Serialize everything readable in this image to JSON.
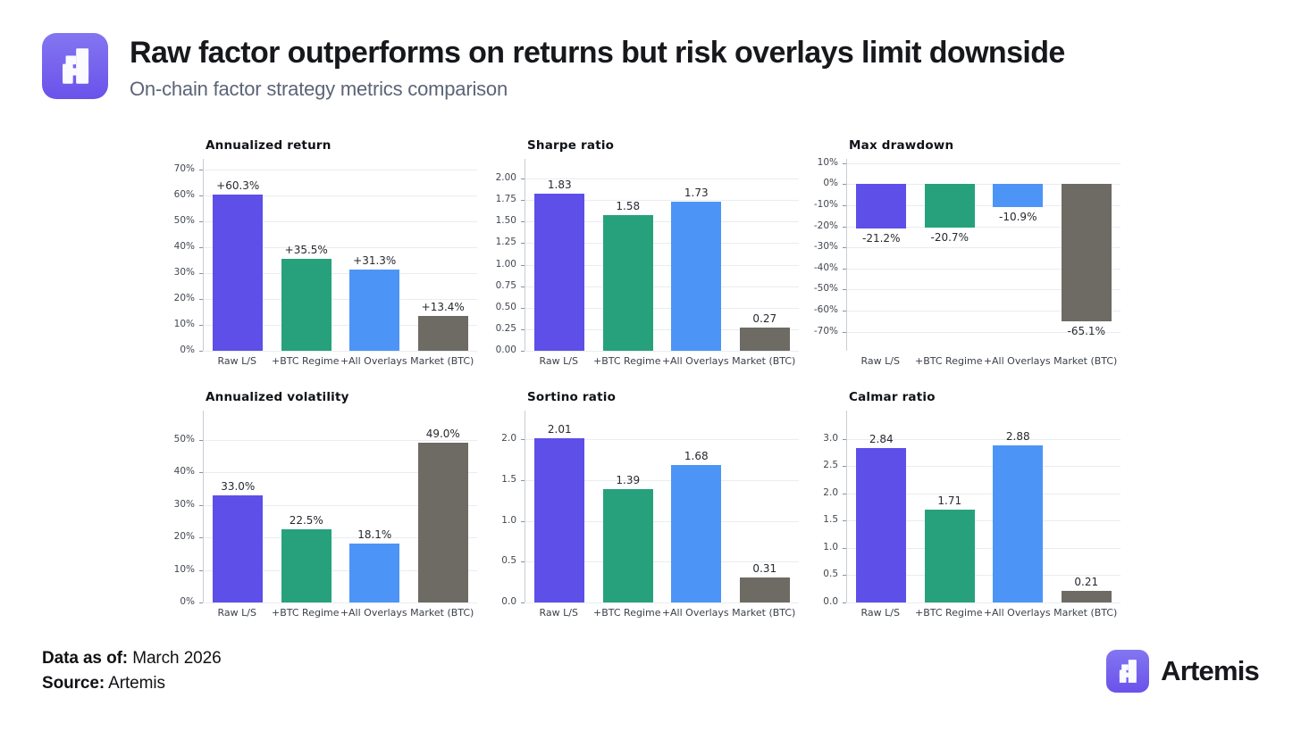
{
  "header": {
    "title": "Raw factor outperforms on returns but risk overlays limit downside",
    "subtitle": "On-chain factor strategy metrics comparison"
  },
  "footer": {
    "data_as_of_label": "Data as of:",
    "data_as_of_value": " March 2026",
    "source_label": "Source:",
    "source_value": " Artemis",
    "brand": "Artemis"
  },
  "colors": {
    "bar_colors": [
      "#5D4FE8",
      "#27A17C",
      "#4D94F7",
      "#6E6B64"
    ],
    "logo_purple_top": "#8376F1",
    "logo_purple_bottom": "#6A52EA",
    "title_text": "#16181C",
    "subtitle_text": "#5B6477",
    "gridline": "#e9ecf1"
  },
  "chart_data": [
    {
      "id": "annualized-return",
      "type": "bar",
      "title": "Annualized return",
      "categories": [
        "Raw L/S",
        "+BTC Regime",
        "+All Overlays",
        "Market (BTC)"
      ],
      "values": [
        60.3,
        35.5,
        31.3,
        13.4
      ],
      "labels": [
        "+60.3%",
        "+35.5%",
        "+31.3%",
        "+13.4%"
      ],
      "ylim": [
        0,
        74
      ],
      "ticks": [
        [
          70,
          "70%"
        ],
        [
          60,
          "60%"
        ],
        [
          50,
          "50%"
        ],
        [
          40,
          "40%"
        ],
        [
          30,
          "30%"
        ],
        [
          20,
          "20%"
        ],
        [
          10,
          "10%"
        ],
        [
          0,
          "0%"
        ]
      ],
      "grid": true,
      "legend": "none"
    },
    {
      "id": "sharpe-ratio",
      "type": "bar",
      "title": "Sharpe ratio",
      "categories": [
        "Raw L/S",
        "+BTC Regime",
        "+All Overlays",
        "Market (BTC)"
      ],
      "values": [
        1.83,
        1.58,
        1.73,
        0.27
      ],
      "labels": [
        "1.83",
        "1.58",
        "1.73",
        "0.27"
      ],
      "ylim": [
        0,
        2.23
      ],
      "ticks": [
        [
          2.0,
          "2.00"
        ],
        [
          1.75,
          "1.75"
        ],
        [
          1.5,
          "1.50"
        ],
        [
          1.25,
          "1.25"
        ],
        [
          1.0,
          "1.00"
        ],
        [
          0.75,
          "0.75"
        ],
        [
          0.5,
          "0.50"
        ],
        [
          0.25,
          "0.25"
        ],
        [
          0.0,
          "0.00"
        ]
      ],
      "grid": true,
      "legend": "none"
    },
    {
      "id": "max-drawdown",
      "type": "bar",
      "title": "Max drawdown",
      "categories": [
        "Raw L/S",
        "+BTC Regime",
        "+All Overlays",
        "Market (BTC)"
      ],
      "values": [
        -21.2,
        -20.7,
        -10.9,
        -65.1
      ],
      "labels": [
        "-21.2%",
        "-20.7%",
        "-10.9%",
        "-65.1%"
      ],
      "ylim": [
        -79,
        12
      ],
      "ticks": [
        [
          10,
          "10%"
        ],
        [
          0,
          "0%"
        ],
        [
          -10,
          "-10%"
        ],
        [
          -20,
          "-20%"
        ],
        [
          -30,
          "-30%"
        ],
        [
          -40,
          "-40%"
        ],
        [
          -50,
          "-50%"
        ],
        [
          -60,
          "-60%"
        ],
        [
          -70,
          "-70%"
        ]
      ],
      "grid": true,
      "legend": "none"
    },
    {
      "id": "annualized-volatility",
      "type": "bar",
      "title": "Annualized volatility",
      "categories": [
        "Raw L/S",
        "+BTC Regime",
        "+All Overlays",
        "Market (BTC)"
      ],
      "values": [
        33.0,
        22.5,
        18.1,
        49.0
      ],
      "labels": [
        "33.0%",
        "22.5%",
        "18.1%",
        "49.0%"
      ],
      "ylim": [
        0,
        59
      ],
      "ticks": [
        [
          50,
          "50%"
        ],
        [
          40,
          "40%"
        ],
        [
          30,
          "30%"
        ],
        [
          20,
          "20%"
        ],
        [
          10,
          "10%"
        ],
        [
          0,
          "0%"
        ]
      ],
      "grid": true,
      "legend": "none"
    },
    {
      "id": "sortino-ratio",
      "type": "bar",
      "title": "Sortino ratio",
      "categories": [
        "Raw L/S",
        "+BTC Regime",
        "+All Overlays",
        "Market (BTC)"
      ],
      "values": [
        2.01,
        1.39,
        1.68,
        0.31
      ],
      "labels": [
        "2.01",
        "1.39",
        "1.68",
        "0.31"
      ],
      "ylim": [
        0,
        2.35
      ],
      "ticks": [
        [
          2.0,
          "2.0"
        ],
        [
          1.5,
          "1.5"
        ],
        [
          1.0,
          "1.0"
        ],
        [
          0.5,
          "0.5"
        ],
        [
          0.0,
          "0.0"
        ]
      ],
      "grid": true,
      "legend": "none"
    },
    {
      "id": "calmar-ratio",
      "type": "bar",
      "title": "Calmar ratio",
      "categories": [
        "Raw L/S",
        "+BTC Regime",
        "+All Overlays",
        "Market (BTC)"
      ],
      "values": [
        2.84,
        1.71,
        2.88,
        0.21
      ],
      "labels": [
        "2.84",
        "1.71",
        "2.88",
        "0.21"
      ],
      "ylim": [
        0,
        3.52
      ],
      "ticks": [
        [
          3.0,
          "3.0"
        ],
        [
          2.5,
          "2.5"
        ],
        [
          2.0,
          "2.0"
        ],
        [
          1.5,
          "1.5"
        ],
        [
          1.0,
          "1.0"
        ],
        [
          0.5,
          "0.5"
        ],
        [
          0.0,
          "0.0"
        ]
      ],
      "grid": true,
      "legend": "none"
    }
  ]
}
